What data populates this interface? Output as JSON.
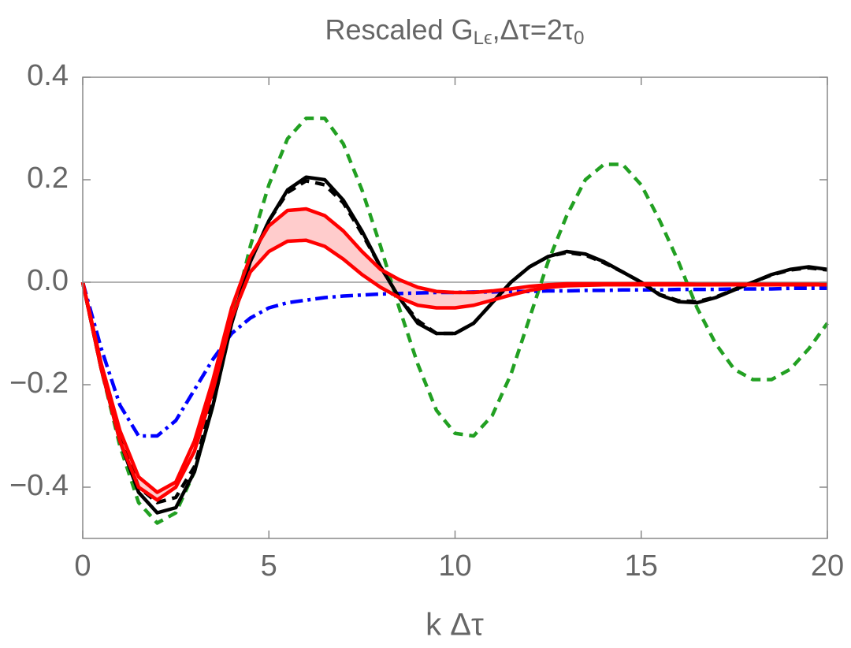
{
  "chart_data": {
    "type": "line",
    "title": [
      "Rescaled G",
      "Lϵ",
      ",Δτ=2τ",
      "0"
    ],
    "xlabel": "k Δτ",
    "x": [
      0,
      0.5,
      1,
      1.5,
      2,
      2.5,
      3,
      3.5,
      4,
      4.5,
      5,
      5.5,
      6,
      6.5,
      7,
      7.5,
      8,
      8.5,
      9,
      9.5,
      10,
      10.5,
      11,
      11.5,
      12,
      12.5,
      13,
      13.5,
      14,
      14.5,
      15,
      15.5,
      16,
      16.5,
      17,
      17.5,
      18,
      18.5,
      19,
      19.5,
      20
    ],
    "xlim": [
      0,
      20
    ],
    "xticks": [
      0,
      5,
      10,
      15,
      20
    ],
    "ylim": [
      -0.5,
      0.4
    ],
    "yticks": [
      {
        "value": -0.4,
        "label": "−0.4"
      },
      {
        "value": -0.2,
        "label": "−0.2"
      },
      {
        "value": 0,
        "label": "0.0"
      },
      0.2,
      0.4
    ],
    "band_color": "#ffcccc",
    "series": [
      {
        "color": "#22a022",
        "dash": "dashed",
        "values": [
          0,
          -0.17,
          -0.32,
          -0.43,
          -0.47,
          -0.45,
          -0.37,
          -0.24,
          -0.08,
          0.07,
          0.19,
          0.28,
          0.32,
          0.32,
          0.27,
          0.18,
          0.07,
          -0.05,
          -0.16,
          -0.25,
          -0.295,
          -0.3,
          -0.26,
          -0.18,
          -0.07,
          0.04,
          0.13,
          0.2,
          0.23,
          0.23,
          0.19,
          0.12,
          0.04,
          -0.05,
          -0.12,
          -0.17,
          -0.19,
          -0.19,
          -0.17,
          -0.13,
          -0.08
        ]
      },
      {
        "color": "#0000ff",
        "dash": "dashdot",
        "values": [
          0,
          -0.13,
          -0.24,
          -0.3,
          -0.3,
          -0.27,
          -0.21,
          -0.15,
          -0.1,
          -0.07,
          -0.05,
          -0.04,
          -0.035,
          -0.03,
          -0.027,
          -0.025,
          -0.023,
          -0.022,
          -0.021,
          -0.02,
          -0.02,
          -0.019,
          -0.019,
          -0.018,
          -0.018,
          -0.017,
          -0.017,
          -0.016,
          -0.016,
          -0.015,
          -0.015,
          -0.015,
          -0.014,
          -0.014,
          -0.014,
          -0.013,
          -0.013,
          -0.013,
          -0.012,
          -0.012,
          -0.012
        ]
      },
      {
        "color": "#000000",
        "dash": "solid",
        "values": [
          0,
          -0.17,
          -0.31,
          -0.41,
          -0.45,
          -0.44,
          -0.37,
          -0.24,
          -0.08,
          0.04,
          0.12,
          0.18,
          0.205,
          0.2,
          0.16,
          0.1,
          0.03,
          -0.03,
          -0.08,
          -0.1,
          -0.1,
          -0.08,
          -0.04,
          0,
          0.03,
          0.05,
          0.06,
          0.055,
          0.04,
          0.02,
          0,
          -0.025,
          -0.038,
          -0.04,
          -0.03,
          -0.015,
          0,
          0.015,
          0.025,
          0.03,
          0.025
        ]
      },
      {
        "color": "#000000",
        "dash": "dashed",
        "values": [
          0,
          -0.17,
          -0.3,
          -0.4,
          -0.43,
          -0.42,
          -0.36,
          -0.23,
          -0.08,
          0.04,
          0.12,
          0.175,
          0.198,
          0.19,
          0.155,
          0.095,
          0.03,
          -0.03,
          -0.075,
          -0.1,
          -0.1,
          -0.08,
          -0.04,
          0,
          0.03,
          0.05,
          0.058,
          0.053,
          0.038,
          0.02,
          0,
          -0.024,
          -0.036,
          -0.038,
          -0.029,
          -0.014,
          0,
          0.014,
          0.024,
          0.028,
          0.024
        ]
      },
      {
        "color": "#ff0000",
        "dash": "solid",
        "band": true,
        "values": [
          0,
          -0.16,
          -0.29,
          -0.38,
          -0.41,
          -0.39,
          -0.31,
          -0.19,
          -0.05,
          0.05,
          0.11,
          0.14,
          0.143,
          0.13,
          0.1,
          0.06,
          0.025,
          0.005,
          -0.01,
          -0.018,
          -0.02,
          -0.02,
          -0.017,
          -0.013,
          -0.008,
          -0.005,
          -0.003,
          -0.003,
          -0.003,
          -0.003,
          -0.003,
          -0.003,
          -0.003,
          -0.004,
          -0.004,
          -0.004,
          -0.004,
          -0.004,
          -0.004,
          -0.004,
          -0.004
        ]
      },
      {
        "color": "#ff0000",
        "dash": "solid",
        "band": true,
        "values": [
          0,
          -0.17,
          -0.31,
          -0.4,
          -0.425,
          -0.4,
          -0.33,
          -0.21,
          -0.07,
          0.02,
          0.06,
          0.08,
          0.082,
          0.07,
          0.045,
          0.015,
          -0.01,
          -0.03,
          -0.045,
          -0.05,
          -0.05,
          -0.045,
          -0.035,
          -0.025,
          -0.016,
          -0.01,
          -0.007,
          -0.006,
          -0.005,
          -0.005,
          -0.005,
          -0.005,
          -0.005,
          -0.005,
          -0.005,
          -0.005,
          -0.005,
          -0.005,
          -0.005,
          -0.005,
          -0.005
        ]
      }
    ]
  }
}
